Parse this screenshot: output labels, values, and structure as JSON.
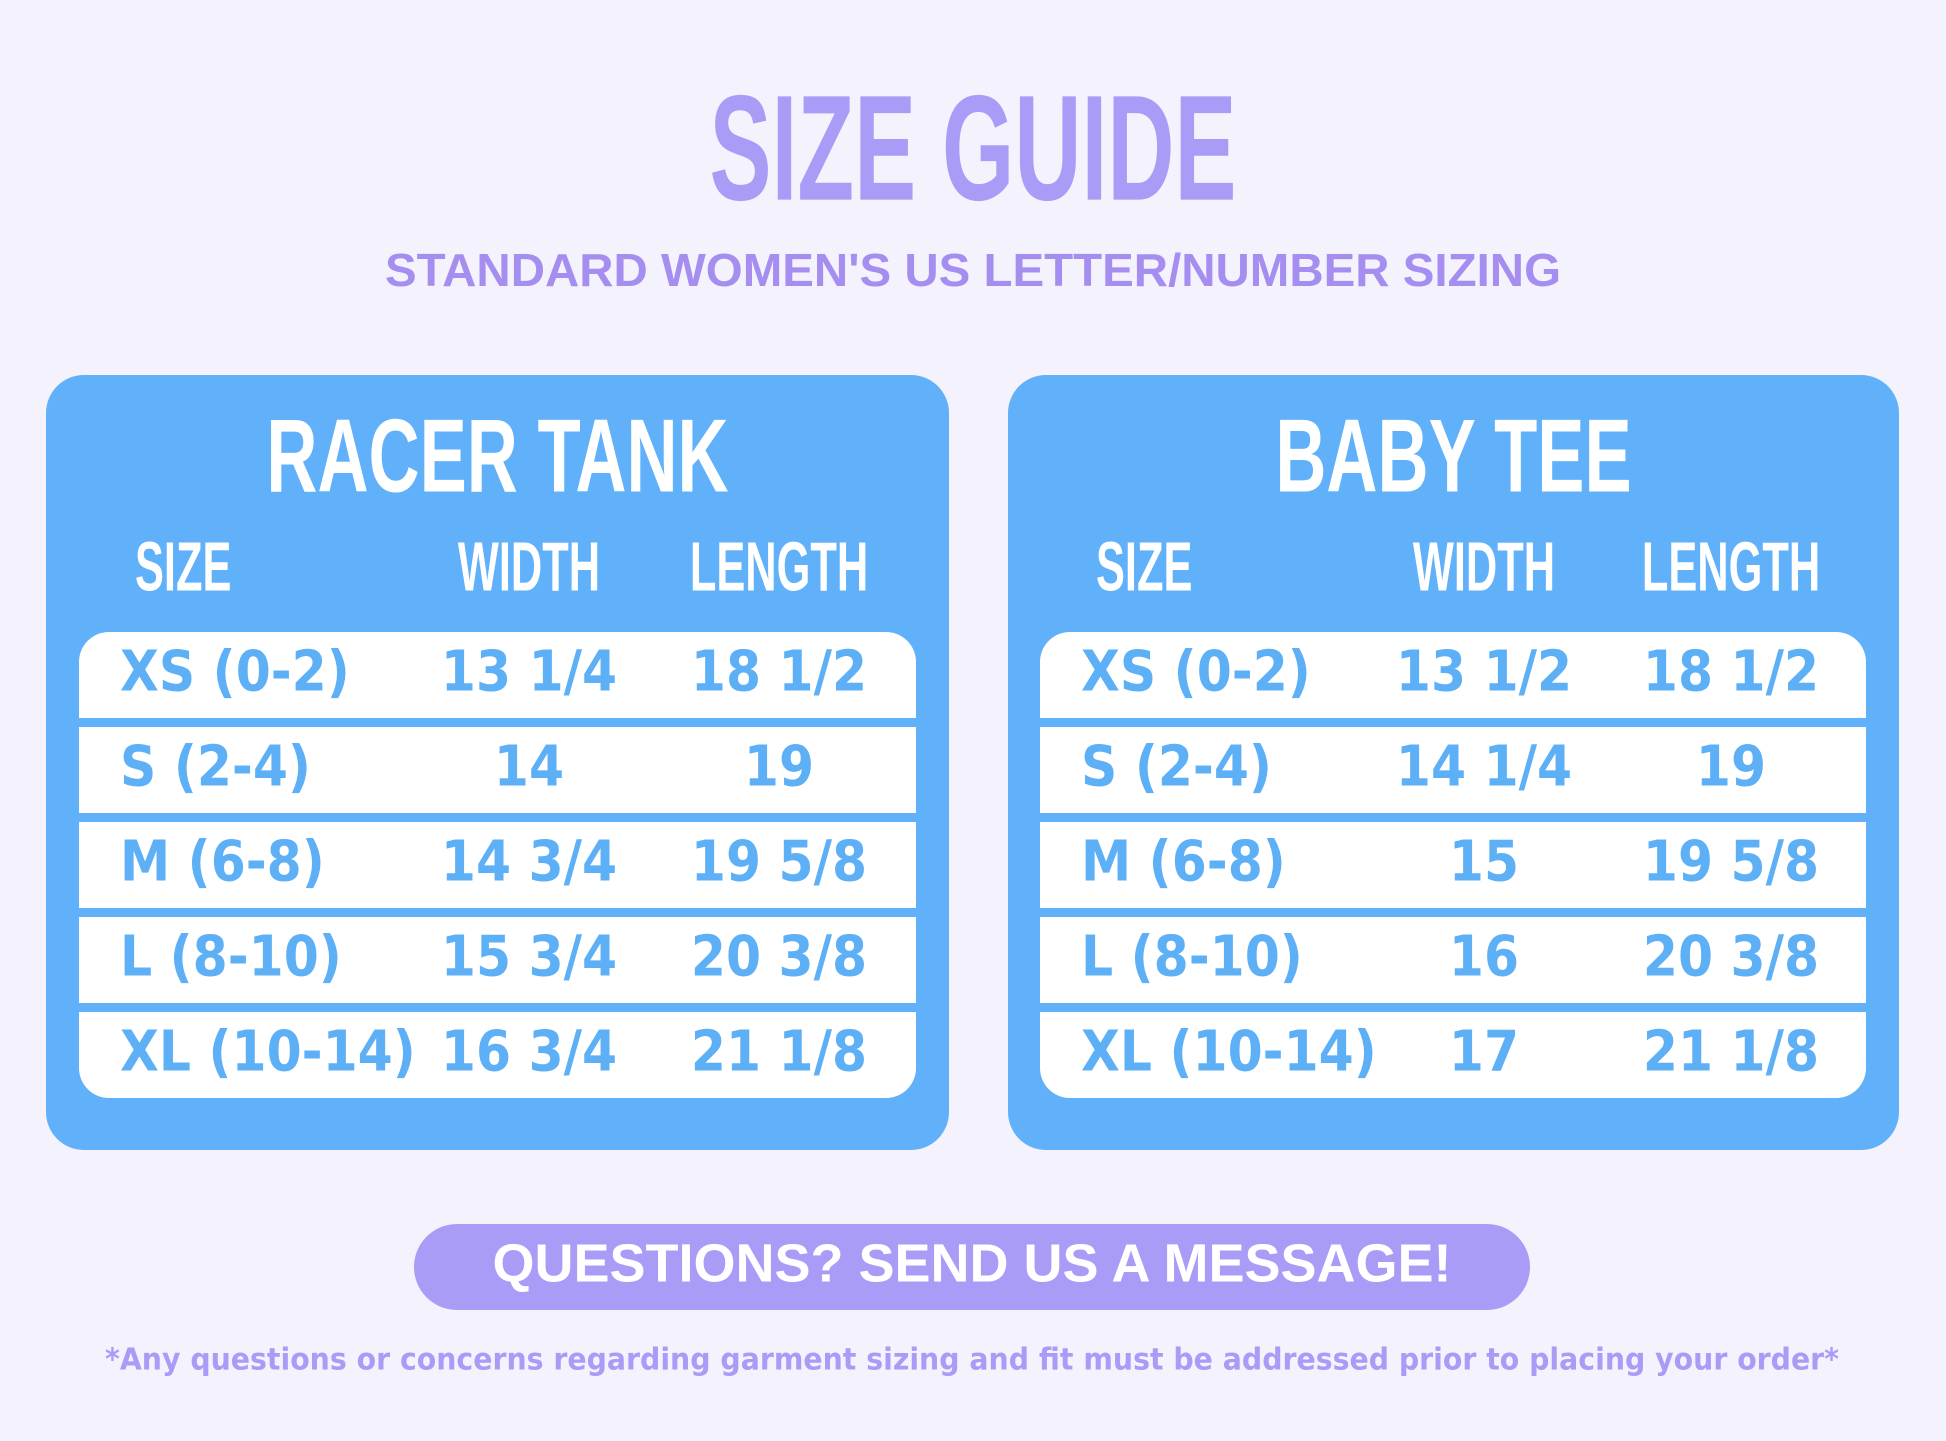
{
  "header": {
    "title": "SIZE GUIDE",
    "subtitle": "STANDARD WOMEN'S US LETTER/NUMBER SIZING"
  },
  "tables": [
    {
      "title": "RACER TANK",
      "columns": [
        "SIZE",
        "WIDTH",
        "LENGTH"
      ],
      "rows": [
        [
          "XS (0-2)",
          "13 1/4",
          "18 1/2"
        ],
        [
          "S (2-4)",
          "14",
          "19"
        ],
        [
          "M (6-8)",
          "14 3/4",
          "19 5/8"
        ],
        [
          "L (8-10)",
          "15 3/4",
          "20 3/8"
        ],
        [
          "XL (10-14)",
          "16 3/4",
          "21 1/8"
        ]
      ]
    },
    {
      "title": "BABY TEE",
      "columns": [
        "SIZE",
        "WIDTH",
        "LENGTH"
      ],
      "rows": [
        [
          "XS (0-2)",
          "13 1/2",
          "18 1/2"
        ],
        [
          "S (2-4)",
          "14 1/4",
          "19"
        ],
        [
          "M (6-8)",
          "15",
          "19 5/8"
        ],
        [
          "L (8-10)",
          "16",
          "20 3/8"
        ],
        [
          "XL (10-14)",
          "17",
          "21 1/8"
        ]
      ]
    }
  ],
  "button": "QUESTIONS? SEND US A MESSAGE!",
  "footnote": "*Any questions or concerns regarding garment sizing and fit must be addressed prior to placing your order*"
}
